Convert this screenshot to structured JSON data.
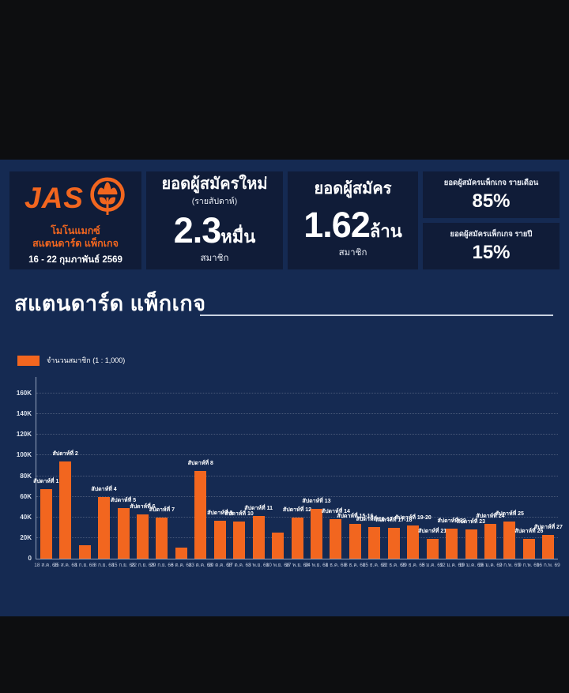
{
  "brand": {
    "logo_text": "JAS",
    "line1": "โมโนแมกซ์",
    "line2": "สแตนดาร์ด แพ็กเกจ",
    "date_range": "16 - 22 กุมภาพันธ์ 2569"
  },
  "cards": {
    "new_subscribers": {
      "title": "ยอดผู้สมัครใหม่",
      "subtitle": "(รายสัปดาห์)",
      "value": "2.3",
      "value_unit": "หมื่น",
      "footer": "สมาชิก"
    },
    "total_subscribers": {
      "title": "ยอดผู้สมัคร",
      "value": "1.62",
      "value_unit": "ล้าน",
      "footer": "สมาชิก"
    },
    "monthly_pct": {
      "title": "ยอดผู้สมัครแพ็กเกจ รายเดือน",
      "value": "85%"
    },
    "yearly_pct": {
      "title": "ยอดผู้สมัครแพ็กเกจ รายปี",
      "value": "15%"
    }
  },
  "section": {
    "title": "สแตนดาร์ด แพ็กเกจ"
  },
  "chart_data": {
    "type": "bar",
    "legend": "จำนวนสมาชิก (1 : 1,000)",
    "series_name": "จำนวนสมาชิก",
    "unit": "thousands of members",
    "ylim": [
      0,
      160
    ],
    "grid": true,
    "legend_position": "top-left",
    "bar_color": "#f2661f",
    "y_ticks": [
      "0",
      "20K",
      "40K",
      "60K",
      "80K",
      "100K",
      "120K",
      "140K",
      "160K"
    ],
    "categories": [
      "18 ส.ค. 68",
      "25 ส.ค. 68",
      "1 ก.ย. 68",
      "8 ก.ย. 68",
      "15 ก.ย. 68",
      "22 ก.ย. 68",
      "29 ก.ย. 68",
      "6 ต.ค. 68",
      "13 ต.ค. 68",
      "20 ต.ค. 68",
      "27 ต.ค. 68",
      "3 พ.ย. 68",
      "10 พ.ย. 68",
      "17 พ.ย. 68",
      "24 พ.ย. 68",
      "1 ธ.ค. 68",
      "8 ธ.ค. 68",
      "15 ธ.ค. 68",
      "22 ธ.ค. 68",
      "29 ธ.ค. 68",
      "5 ม.ค. 69",
      "12 ม.ค. 69",
      "19 ม.ค. 69",
      "26 ม.ค. 69",
      "2 ก.พ. 69",
      "9 ก.พ. 69",
      "16 ก.พ. 69"
    ],
    "bar_labels": [
      "สัปดาห์ที่ 1",
      "สัปดาห์ที่ 2",
      "",
      "สัปดาห์ที่ 4",
      "สัปดาห์ที่ 5",
      "สัปดาห์ที่ 6",
      "สัปดาห์ที่ 7",
      "",
      "สัปดาห์ที่ 8",
      "สัปดาห์ที่ 9",
      "สัปดาห์ที่ 10",
      "สัปดาห์ที่ 11",
      "",
      "สัปดาห์ที่ 12",
      "สัปดาห์ที่ 13",
      "สัปดาห์ที่ 14",
      "สัปดาห์ที่ 15-16",
      "สัปดาห์ที่ 16-17",
      "สัปดาห์ที่ 17-18",
      "สัปดาห์ที่ 19-20",
      "สัปดาห์ที่ 21",
      "สัปดาห์ที่ 22",
      "สัปดาห์ที่ 23",
      "สัปดาห์ที่ 24",
      "สัปดาห์ที่ 25",
      "สัปดาห์ที่ 26",
      "สัปดาห์ที่ 27"
    ],
    "values": [
      67,
      94,
      13,
      60,
      49,
      43,
      40,
      11,
      85,
      37,
      36,
      41,
      25,
      40,
      48,
      38,
      34,
      31,
      30,
      32,
      19,
      29,
      28,
      34,
      36,
      19,
      23
    ]
  },
  "colors": {
    "accent_orange": "#f2661f",
    "band_navy": "#152a52",
    "card_navy": "#101c38",
    "outer_black": "#0d0e10"
  }
}
